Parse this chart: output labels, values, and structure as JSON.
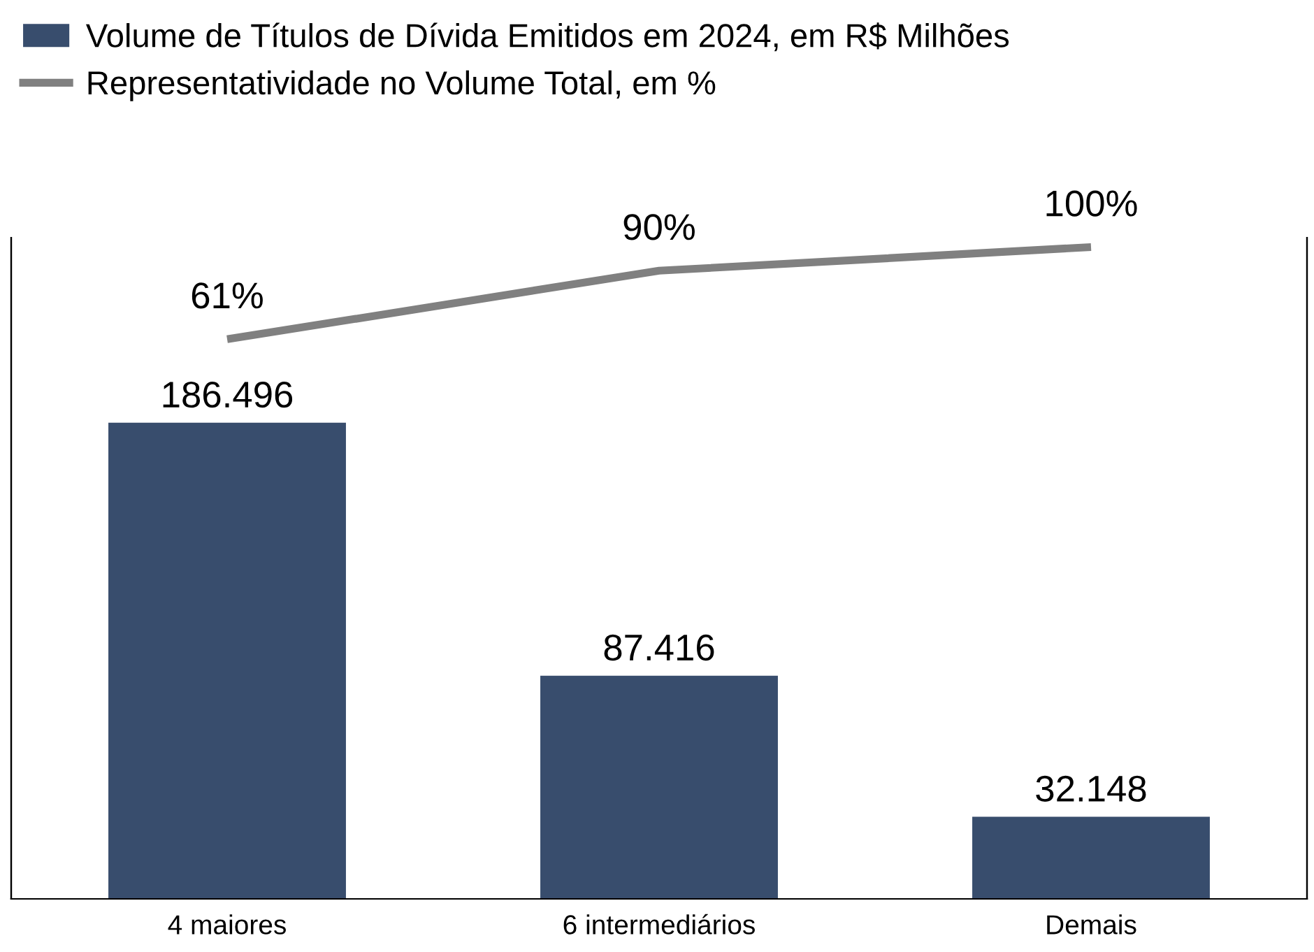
{
  "chart_data": {
    "type": "bar",
    "categories": [
      "4 maiores",
      "6 intermediários",
      "Demais"
    ],
    "series": [
      {
        "name": "Volume de Títulos de Dívida Emitidos em 2024, em R$ Milhões",
        "color": "#384d6d",
        "values": [
          186496,
          87416,
          32148
        ],
        "value_labels": [
          "186.496",
          "87.416",
          "32.148"
        ]
      },
      {
        "type": "line",
        "axis": "y2",
        "name": "Representatividade no Volume Total, em %",
        "color": "#808080",
        "values": [
          61,
          90,
          100
        ],
        "value_labels": [
          "61%",
          "90%",
          "100%"
        ],
        "marker": "none",
        "line_style": "solid"
      }
    ],
    "ylim": [
      0,
      259000
    ],
    "y2lim": [
      -176,
      104
    ],
    "tick_labels": "x",
    "grid": false,
    "legend": "top left"
  }
}
